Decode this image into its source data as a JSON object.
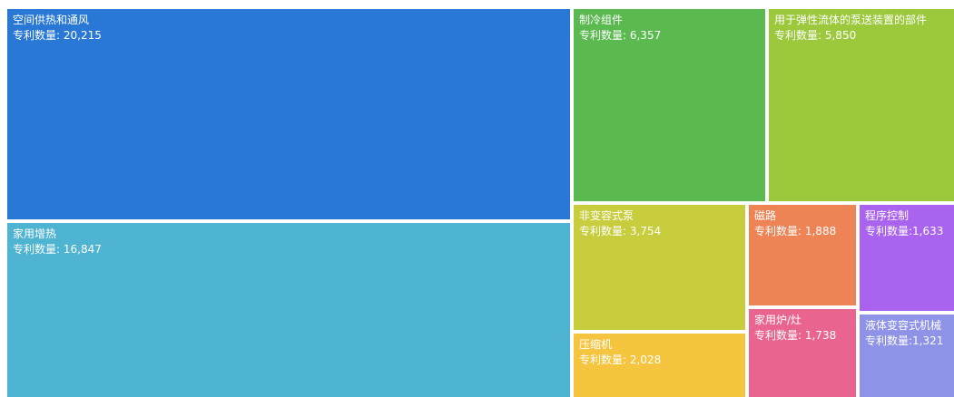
{
  "chart_data": {
    "type": "treemap",
    "value_label": "专利数量",
    "items": [
      {
        "name": "空间供热和通风",
        "value": 20215,
        "value_text": "20,215",
        "sep": ": ",
        "color": "#2a78d6"
      },
      {
        "name": "家用增热",
        "value": 16847,
        "value_text": "16,847",
        "sep": ": ",
        "color": "#4fb3d2"
      },
      {
        "name": "制冷组件",
        "value": 6357,
        "value_text": "6,357",
        "sep": ": ",
        "color": "#5aba4f"
      },
      {
        "name": "用于弹性流体的泵送装置的部件",
        "value": 5850,
        "value_text": "5,850",
        "sep": ": ",
        "color": "#9cc83c"
      },
      {
        "name": "非变容式泵",
        "value": 3754,
        "value_text": "3,754",
        "sep": ": ",
        "color": "#c7cd3c"
      },
      {
        "name": "压缩机",
        "value": 2028,
        "value_text": "2,028",
        "sep": ": ",
        "color": "#f6c53f"
      },
      {
        "name": "磁路",
        "value": 1888,
        "value_text": "1,888",
        "sep": ": ",
        "color": "#ee8455"
      },
      {
        "name": "家用炉/灶",
        "value": 1738,
        "value_text": "1,738",
        "sep": ": ",
        "color": "#e9658f"
      },
      {
        "name": "程序控制",
        "value": 1633,
        "value_text": "1,633",
        "sep": ":",
        "color": "#a963ef"
      },
      {
        "name": "液体变容式机械",
        "value": 1321,
        "value_text": "1,321",
        "sep": ":",
        "color": "#8e93e8"
      }
    ]
  }
}
